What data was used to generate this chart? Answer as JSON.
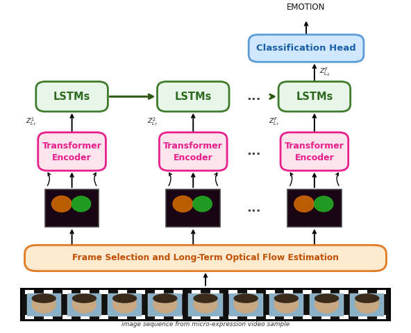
{
  "bg_color": "#ffffff",
  "lstm_box_color": "#e8f5e9",
  "lstm_border_color": "#3d7a2a",
  "lstm_text_color": "#2d6a1f",
  "transformer_box_color": "#fce4ec",
  "transformer_border_color": "#e91e8c",
  "transformer_text_color": "#e91e8c",
  "frame_sel_box_color": "#fde8d0",
  "frame_sel_border_color": "#e07820",
  "frame_sel_text_color": "#c05000",
  "classification_box_color": "#d0e8ff",
  "classification_border_color": "#5b9bd5",
  "classification_text_color": "#1a5fa8",
  "arrow_color": "#111111",
  "lstm_arrow_color": "#2d5a10",
  "film_color": "#111111",
  "film_border_color": "#000000",
  "face_bg_color": "#8ab0c8",
  "face_skin_color": "#c8a882",
  "of_bg_color": "#1a0514",
  "of_blob_orange": "#cc6600",
  "of_blob_green": "#22aa22",
  "cols": [
    0.175,
    0.47,
    0.765
  ],
  "image_strip_caption": "image sequence from micro-expression video sample",
  "emotion_label": "EMOTION",
  "frame_sel_label": "Frame Selection and Long-Term Optical Flow Estimation",
  "classification_label": "Classification Head",
  "lstm_label": "LSTMs",
  "transformer_label1": "Transformer",
  "transformer_label2": "Encoder",
  "zlabels_te_lstm": [
    "$Z^1_{L_T}$",
    "$Z^2_{L_T}$",
    "$Z^F_{L_T}$"
  ],
  "zlabel_lstm_ch": "$Z^F_{L_A}$"
}
